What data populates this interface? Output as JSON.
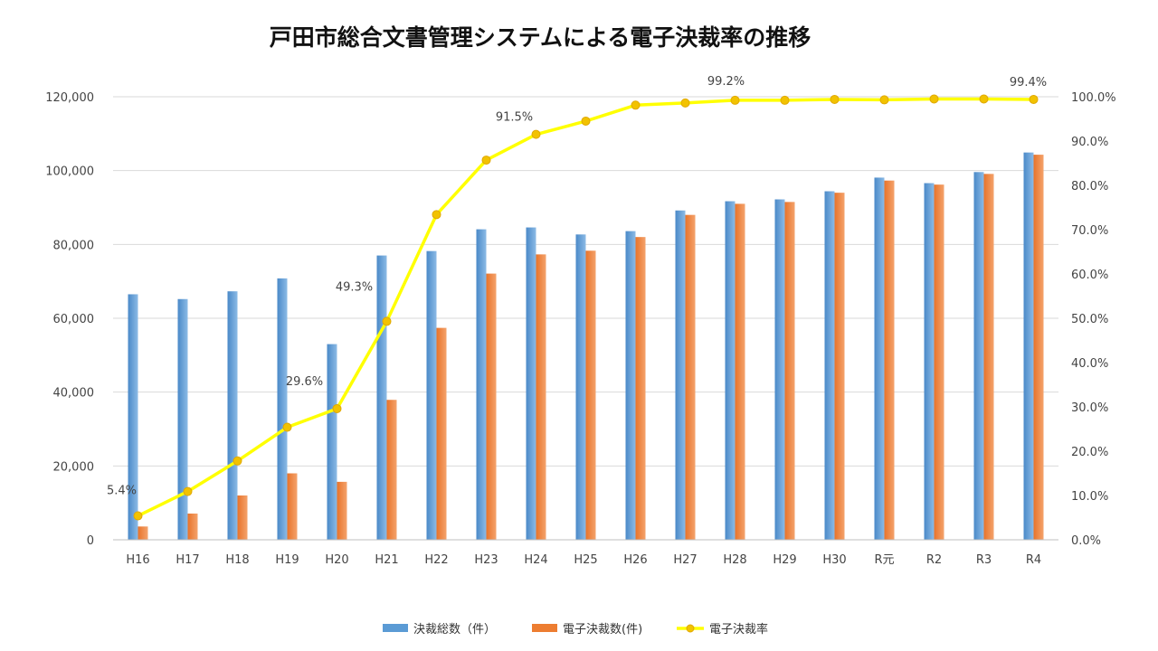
{
  "chart_data": {
    "type": "bar",
    "title": "戸田市総合文書管理システムによる電子決裁率の推移",
    "categories": [
      "H16",
      "H17",
      "H18",
      "H19",
      "H20",
      "H21",
      "H22",
      "H23",
      "H24",
      "H25",
      "H26",
      "H27",
      "H28",
      "H29",
      "H30",
      "R元",
      "R2",
      "R3",
      "R4"
    ],
    "series": [
      {
        "name": "決裁総数（件）",
        "kind": "bar",
        "axis": "left",
        "color": "#5b9bd5",
        "values": [
          66500,
          65200,
          67300,
          70800,
          53000,
          77000,
          78200,
          84100,
          84600,
          82700,
          83600,
          89200,
          91700,
          92200,
          94400,
          98100,
          96600,
          99600,
          104900
        ]
      },
      {
        "name": "電子決裁数(件)",
        "kind": "bar",
        "axis": "left",
        "color": "#ed7d31",
        "values": [
          3600,
          7100,
          12000,
          18000,
          15700,
          37900,
          57400,
          72100,
          77300,
          78300,
          82000,
          88000,
          91000,
          91500,
          94000,
          97300,
          96200,
          99100,
          104300
        ]
      },
      {
        "name": "電子決裁率",
        "kind": "line",
        "axis": "right",
        "color": "#ffff00",
        "values": [
          5.4,
          10.9,
          17.8,
          25.4,
          29.6,
          49.3,
          73.4,
          85.7,
          91.5,
          94.5,
          98.1,
          98.6,
          99.2,
          99.2,
          99.4,
          99.3,
          99.5,
          99.5,
          99.4
        ]
      }
    ],
    "data_labels": [
      {
        "series": 2,
        "index": 0,
        "text": "5.4%"
      },
      {
        "series": 2,
        "index": 4,
        "text": "29.6%"
      },
      {
        "series": 2,
        "index": 5,
        "text": "49.3%"
      },
      {
        "series": 2,
        "index": 8,
        "text": "91.5%"
      },
      {
        "series": 2,
        "index": 12,
        "text": "99.2%"
      },
      {
        "series": 2,
        "index": 18,
        "text": "99.4%"
      }
    ],
    "left_axis": {
      "min": 0,
      "max": 120000,
      "step": 20000,
      "tick_labels": [
        "0",
        "20,000",
        "40,000",
        "60,000",
        "80,000",
        "100,000",
        "120,000"
      ]
    },
    "right_axis": {
      "min": 0,
      "max": 100,
      "step": 10,
      "tick_labels": [
        "0.0%",
        "10.0%",
        "20.0%",
        "30.0%",
        "40.0%",
        "50.0%",
        "60.0%",
        "70.0%",
        "80.0%",
        "90.0%",
        "100.0%"
      ]
    },
    "grid": true,
    "legend_position": "bottom"
  }
}
